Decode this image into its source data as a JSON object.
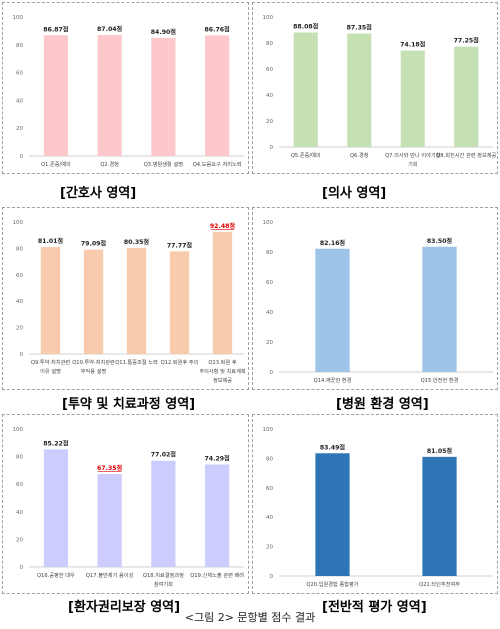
{
  "caption": "<그림 2> 문항별 점수 결과",
  "chart_data": [
    {
      "type": "bar",
      "title": "[간호사 영역]",
      "ylim": [
        0,
        100
      ],
      "yticks": [
        0,
        20,
        40,
        60,
        80,
        100
      ],
      "grid": false,
      "color": "#fcc8cc",
      "categories": [
        [
          "Q1.존중/예의"
        ],
        [
          "Q2.경청"
        ],
        [
          "Q3.병원생활 설명"
        ],
        [
          "Q4.도움요구 처리노력"
        ]
      ],
      "values": [
        86.87,
        87.04,
        84.9,
        86.76
      ],
      "value_labels": [
        "86.87점",
        "87.04점",
        "84.90점",
        "86.76점"
      ],
      "highlight": []
    },
    {
      "type": "bar",
      "title": "[의사 영역]",
      "ylim": [
        0,
        100
      ],
      "yticks": [
        0,
        20,
        40,
        60,
        80,
        100
      ],
      "grid": false,
      "color": "#c5e0b3",
      "categories": [
        [
          "Q5.존중/예의"
        ],
        [
          "Q6.경청"
        ],
        [
          "Q7.의사와 만나 이야기할",
          "기회"
        ],
        [
          "Q8.회진시간 관련 정보제공"
        ]
      ],
      "values": [
        88.08,
        87.35,
        74.18,
        77.25
      ],
      "value_labels": [
        "88.08점",
        "87.35점",
        "74.18점",
        "77.25점"
      ],
      "highlight": []
    },
    {
      "type": "bar",
      "title": "[투약 및 치료과정 영역]",
      "ylim": [
        0,
        100
      ],
      "yticks": [
        0,
        20,
        40,
        60,
        80,
        100
      ],
      "grid": false,
      "color": "#f8cbad",
      "categories": [
        [
          "Q9.투약·처치관련",
          "이유 설명"
        ],
        [
          "Q10.투약·처치관련",
          "부작용 설명"
        ],
        [
          "Q11.통증조절 노력"
        ],
        [
          "Q12.퇴원후 주의"
        ],
        [
          "Q13.퇴원 후",
          "주의사항 및 치료계획",
          "정보제공"
        ]
      ],
      "values": [
        81.01,
        79.09,
        80.35,
        77.77,
        92.48
      ],
      "value_labels": [
        "81.01점",
        "79.09점",
        "80.35점",
        "77.77점",
        "92.48점"
      ],
      "highlight": [
        4
      ]
    },
    {
      "type": "bar",
      "title": "[병원 환경 영역]",
      "ylim": [
        0,
        100
      ],
      "yticks": [
        0,
        20,
        40,
        60,
        80,
        100
      ],
      "grid": false,
      "color": "#9dc3e6",
      "categories": [
        [
          "Q14.깨끗한 환경"
        ],
        [
          "Q15.안전한 환경"
        ]
      ],
      "values": [
        82.16,
        83.5
      ],
      "value_labels": [
        "82.16점",
        "83.50점"
      ],
      "highlight": []
    },
    {
      "type": "bar",
      "title": "[환자권리보장 영역]",
      "ylim": [
        0,
        100
      ],
      "yticks": [
        0,
        20,
        40,
        60,
        80,
        100
      ],
      "grid": false,
      "color": "#ccccff",
      "categories": [
        [
          "Q16.공평한 대우"
        ],
        [
          "Q17.불만제기 용이성"
        ],
        [
          "Q18.치료결정과정",
          "참여기회"
        ],
        [
          "Q19.신체노출 관련 배려"
        ]
      ],
      "values": [
        85.22,
        67.35,
        77.02,
        74.29
      ],
      "value_labels": [
        "85.22점",
        "67.35점",
        "77.02점",
        "74.29점"
      ],
      "highlight": [
        1
      ]
    },
    {
      "type": "bar",
      "title": "[전반적 평가 영역]",
      "ylim": [
        0,
        100
      ],
      "yticks": [
        0,
        20,
        40,
        60,
        80,
        100
      ],
      "grid": false,
      "color": "#2e75b6",
      "categories": [
        [
          "Q20.입원경험 종합평가"
        ],
        [
          "Q21.타인추천여부"
        ]
      ],
      "values": [
        83.49,
        81.05
      ],
      "value_labels": [
        "83.49점",
        "81.05점"
      ],
      "highlight": []
    }
  ]
}
